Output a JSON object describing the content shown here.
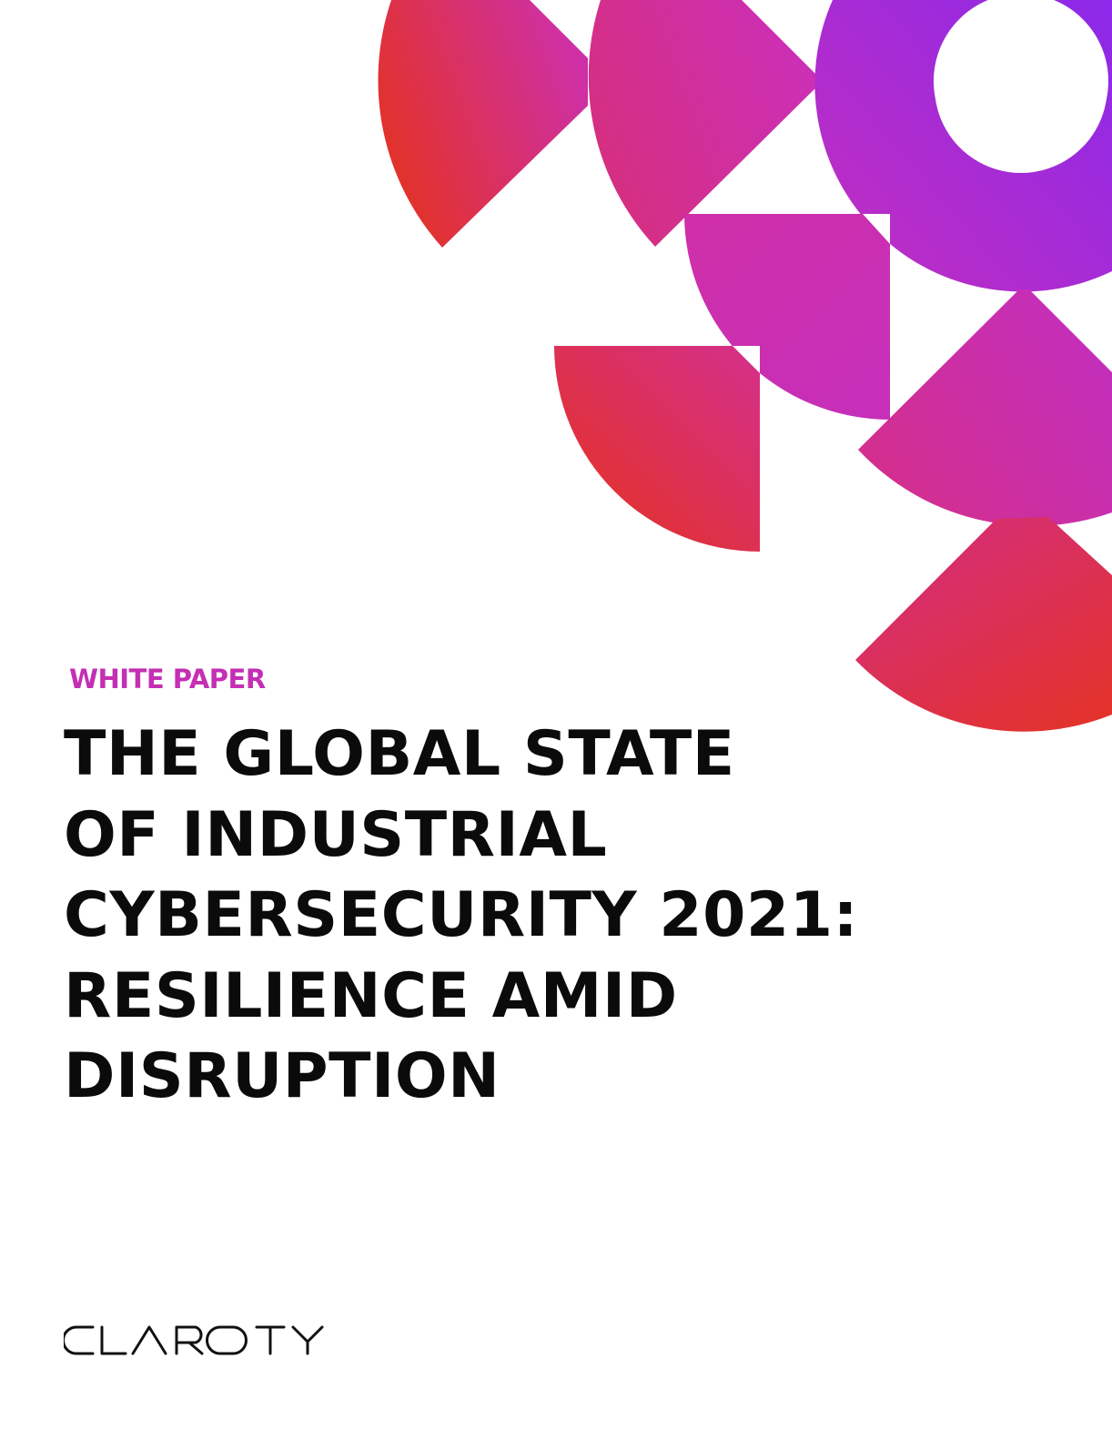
{
  "document": {
    "eyebrow": "WHITE PAPER",
    "title_lines": [
      "THE GLOBAL STATE",
      "OF INDUSTRIAL",
      "CYBERSECURITY 2021:",
      "RESILIENCE AMID",
      "DISRUPTION"
    ],
    "brand": "CLAROTY"
  },
  "colors": {
    "accent": "#c42fb4",
    "gradient_red": "#e33226",
    "gradient_magenta": "#cc2fb3",
    "gradient_purple": "#9029e6",
    "title_text": "#0b0b0b"
  },
  "icons": [
    "claroty-logo"
  ]
}
